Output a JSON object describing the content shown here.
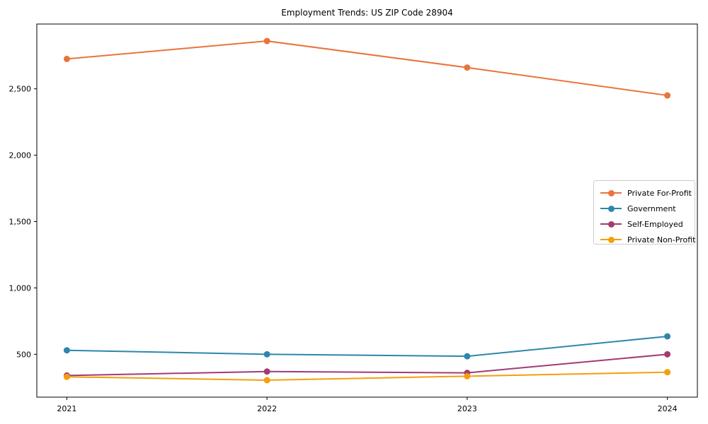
{
  "title": "Employment Trends: US ZIP Code 28904",
  "chart_data": {
    "type": "line",
    "title": "Employment Trends: US ZIP Code 28904",
    "xlabel": "",
    "ylabel": "",
    "x": [
      2021,
      2022,
      2023,
      2024
    ],
    "x_tick_labels": [
      "2021",
      "2022",
      "2023",
      "2024"
    ],
    "y_ticks": [
      {
        "value": 500,
        "label": "500"
      },
      {
        "value": 1000,
        "label": "1,000"
      },
      {
        "value": 1500,
        "label": "1,500"
      },
      {
        "value": 2000,
        "label": "2,000"
      },
      {
        "value": 2500,
        "label": "2,500"
      }
    ],
    "xlim": [
      2020.85,
      2024.15
    ],
    "ylim": [
      177,
      2988
    ],
    "grid": false,
    "legend_position": "center right",
    "series": [
      {
        "name": "Private For-Profit",
        "color": "#E8743B",
        "values": [
          2725,
          2860,
          2660,
          2450
        ]
      },
      {
        "name": "Government",
        "color": "#2E86AB",
        "values": [
          530,
          500,
          485,
          635
        ]
      },
      {
        "name": "Self-Employed",
        "color": "#A23B72",
        "values": [
          340,
          370,
          360,
          500
        ]
      },
      {
        "name": "Private Non-Profit",
        "color": "#F59E0B",
        "values": [
          330,
          305,
          335,
          365
        ]
      }
    ],
    "style": {
      "line_width": 2,
      "marker": "circle",
      "marker_radius": 4.5,
      "axis_color": "#000000",
      "background": "#ffffff"
    }
  }
}
